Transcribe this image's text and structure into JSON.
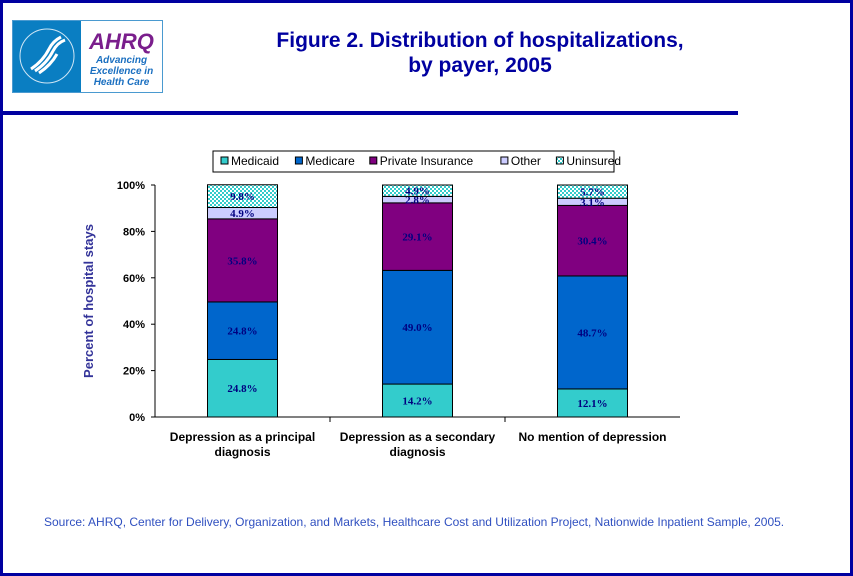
{
  "header": {
    "title_line1": "Figure 2. Distribution of hospitalizations,",
    "title_line2": "by payer, 2005",
    "logo": {
      "name": "AHRQ",
      "tagline": [
        "Advancing",
        "Excellence in",
        "Health Care"
      ],
      "hhs_seal": "Department of Health & Human Services USA"
    }
  },
  "chart_data": {
    "type": "bar",
    "stacked": true,
    "categories": [
      [
        "Depression as a principal",
        "diagnosis"
      ],
      [
        "Depression as a secondary",
        "diagnosis"
      ],
      [
        "No mention of depression"
      ]
    ],
    "ylabel": "Percent of hospital stays",
    "ylim": [
      0,
      100
    ],
    "yticks": [
      "0%",
      "20%",
      "40%",
      "60%",
      "80%",
      "100%"
    ],
    "legend_position": "top",
    "series": [
      {
        "name": "Medicaid",
        "color": "#33cccc",
        "values": [
          24.8,
          14.2,
          12.1
        ],
        "labels": [
          "24.8%",
          "14.2%",
          "12.1%"
        ]
      },
      {
        "name": "Medicare",
        "color": "#0066cc",
        "values": [
          24.8,
          49.0,
          48.7
        ],
        "labels": [
          "24.8%",
          "49.0%",
          "48.7%"
        ]
      },
      {
        "name": "Private Insurance",
        "color": "#800080",
        "values": [
          35.8,
          29.1,
          30.4
        ],
        "labels": [
          "35.8%",
          "29.1%",
          "30.4%"
        ]
      },
      {
        "name": "Other",
        "color": "#ccccff",
        "values": [
          4.9,
          2.8,
          3.1
        ],
        "labels": [
          "4.9%",
          "2.8%",
          "3.1%"
        ]
      },
      {
        "name": "Uninsured",
        "color": "#99e6e6",
        "pattern": "checkered",
        "values": [
          9.8,
          4.9,
          5.7
        ],
        "labels": [
          "9.8%",
          "4.9%",
          "5.7%"
        ]
      }
    ],
    "label_color": "#000080"
  },
  "source": "Source: AHRQ, Center for Delivery, Organization, and Markets, Healthcare Cost and Utilization Project, Nationwide Inpatient Sample, 2005."
}
